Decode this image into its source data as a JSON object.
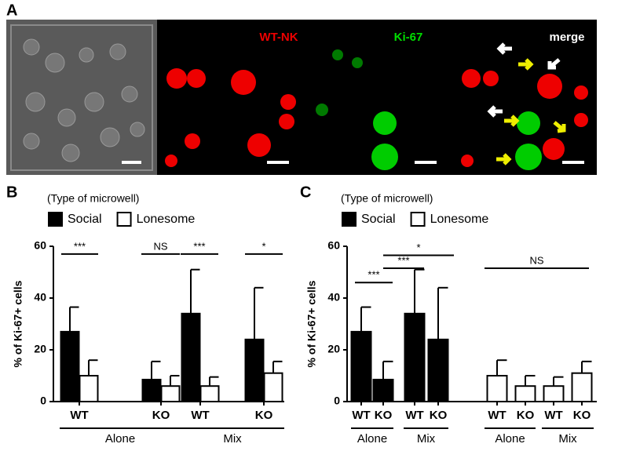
{
  "panel_a": {
    "label": "A",
    "channels": [
      "WT-NK",
      "Ki-67",
      "merge"
    ]
  },
  "chart_data": [
    {
      "type": "bar",
      "panel_label": "B",
      "legend_title": "(Type of microwell)",
      "ylabel": "% of Ki-67+ cells",
      "categories": [
        "WT",
        "KO",
        "WT",
        "KO"
      ],
      "group_labels": [
        "Alone",
        "Mix"
      ],
      "series": [
        {
          "name": "Social",
          "color": "#000000",
          "values": [
            27,
            8.5,
            34,
            24
          ],
          "errors": [
            9.5,
            7,
            17,
            20
          ]
        },
        {
          "name": "Lonesome",
          "color": "#ffffff",
          "values": [
            10,
            6,
            6,
            11
          ],
          "errors": [
            6,
            4,
            3.5,
            4.5
          ]
        }
      ],
      "ylim": [
        0,
        60
      ],
      "yticks": [
        0,
        20,
        40,
        60
      ],
      "annotations": [
        "***",
        "NS",
        "***",
        "*"
      ]
    },
    {
      "type": "bar",
      "panel_label": "C",
      "legend_title": "(Type of microwell)",
      "ylabel": "% of Ki-67+ cells",
      "categories": [
        "WT",
        "KO",
        "WT",
        "KO",
        "WT",
        "KO",
        "WT",
        "KO"
      ],
      "group_labels": [
        "Alone",
        "Mix",
        "Alone",
        "Mix"
      ],
      "series": [
        {
          "name": "Social",
          "color": "#000000",
          "values": [
            27,
            8.5,
            34,
            24,
            null,
            null,
            null,
            null
          ],
          "errors": [
            9.5,
            7,
            17,
            20,
            null,
            null,
            null,
            null
          ]
        },
        {
          "name": "Lonesome",
          "color": "#ffffff",
          "values": [
            null,
            null,
            null,
            null,
            10,
            6,
            6,
            11
          ],
          "errors": [
            null,
            null,
            null,
            null,
            6,
            4,
            3.5,
            4.5
          ]
        }
      ],
      "ylim": [
        0,
        60
      ],
      "yticks": [
        0,
        20,
        40,
        60
      ],
      "annotations": [
        "***",
        "***",
        "*",
        "NS"
      ]
    }
  ]
}
